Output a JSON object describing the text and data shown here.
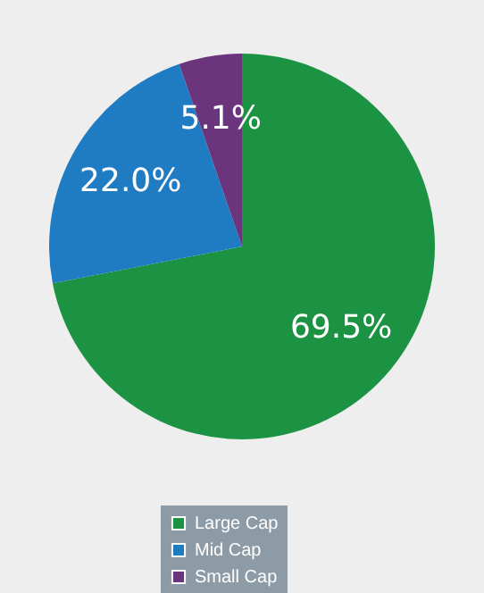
{
  "chart_data": {
    "type": "pie",
    "categories": [
      "Large Cap",
      "Mid Cap",
      "Small Cap"
    ],
    "values": [
      69.5,
      22.0,
      5.1
    ],
    "value_labels": [
      "69.5%",
      "22.0%",
      "5.1%"
    ],
    "colors": [
      "#1b9343",
      "#1f7bc2",
      "#6b357e"
    ],
    "legend": "bottom"
  }
}
